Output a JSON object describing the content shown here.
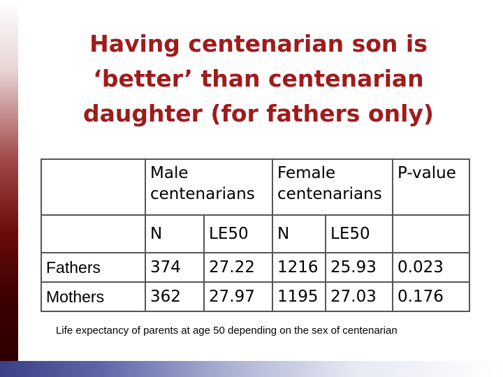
{
  "slide": {
    "title_lines": [
      "Having centenarian son is",
      "‘better’ than centenarian",
      "daughter (for fathers only)"
    ],
    "caption": "Life expectancy of parents at age 50 depending on the sex of centenarian",
    "colors": {
      "title": "#a01b1b"
    }
  },
  "table": {
    "header": {
      "male": "Male centenarians",
      "male_l1": "Male",
      "male_l2": "centenarians",
      "female_l1": "Female",
      "female_l2": "centenarians",
      "pvalue": "P-value"
    },
    "subheader": {
      "n1": "N",
      "le1": "LE50",
      "n2": "N",
      "le2": "LE50"
    },
    "rows": [
      {
        "label": "Fathers",
        "male_n": "374",
        "male_le50": "27.22",
        "female_n": "1216",
        "female_le50": "25.93",
        "pvalue": "0.023"
      },
      {
        "label": "Mothers",
        "male_n": "362",
        "male_le50": "27.97",
        "female_n": "1195",
        "female_le50": "27.03",
        "pvalue": "0.176"
      }
    ]
  }
}
